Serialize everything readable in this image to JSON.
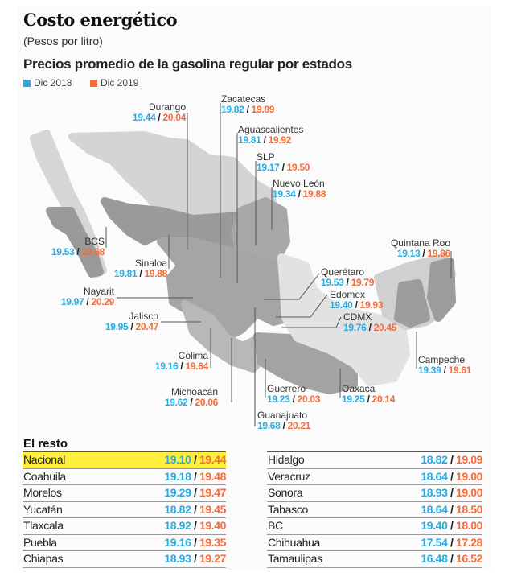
{
  "title": "Costo energético",
  "subtitle": "(Pesos por litro)",
  "heading": "Precios promedio de la gasolina regular por estados",
  "legend": [
    {
      "label": "Dic 2018",
      "color": "#29abe2"
    },
    {
      "label": "Dic 2019",
      "color": "#f26b3a"
    }
  ],
  "chart_data": {
    "type": "table",
    "title": "Precios promedio de la gasolina regular por estados",
    "series": [
      {
        "name": "Dic 2018"
      },
      {
        "name": "Dic 2019"
      }
    ],
    "map_states": [
      {
        "state": "Durango",
        "dic2018": "19.44",
        "dic2019": "20.04"
      },
      {
        "state": "Zacatecas",
        "dic2018": "19.82",
        "dic2019": "19.89"
      },
      {
        "state": "Aguascalientes",
        "dic2018": "19.81",
        "dic2019": "19.92"
      },
      {
        "state": "SLP",
        "dic2018": "19.17",
        "dic2019": "19.50"
      },
      {
        "state": "Nuevo León",
        "dic2018": "19.34",
        "dic2019": "19.88"
      },
      {
        "state": "BCS",
        "dic2018": "19.53",
        "dic2019": "20.68"
      },
      {
        "state": "Sinaloa",
        "dic2018": "19.81",
        "dic2019": "19.88"
      },
      {
        "state": "Nayarit",
        "dic2018": "19.97",
        "dic2019": "20.29"
      },
      {
        "state": "Jalisco",
        "dic2018": "19.95",
        "dic2019": "20.47"
      },
      {
        "state": "Colima",
        "dic2018": "19.16",
        "dic2019": "19.64"
      },
      {
        "state": "Michoacán",
        "dic2018": "19.62",
        "dic2019": "20.06"
      },
      {
        "state": "Guerrero",
        "dic2018": "19.23",
        "dic2019": "20.03"
      },
      {
        "state": "Guanajuato",
        "dic2018": "19.68",
        "dic2019": "20.21"
      },
      {
        "state": "Oaxaca",
        "dic2018": "19.25",
        "dic2019": "20.14"
      },
      {
        "state": "Querétaro",
        "dic2018": "19.53",
        "dic2019": "19.79"
      },
      {
        "state": "Edomex",
        "dic2018": "19.40",
        "dic2019": "19.93"
      },
      {
        "state": "CDMX",
        "dic2018": "19.76",
        "dic2019": "20.45"
      },
      {
        "state": "Quintana Roo",
        "dic2018": "19.13",
        "dic2019": "19.86"
      },
      {
        "state": "Campeche",
        "dic2018": "19.39",
        "dic2019": "19.61"
      }
    ],
    "rest_title": "El resto",
    "rest_left": [
      {
        "state": "Nacional",
        "dic2018": "19.10",
        "dic2019": "19.44",
        "highlight": true
      },
      {
        "state": "Coahuila",
        "dic2018": "19.18",
        "dic2019": "19.48"
      },
      {
        "state": "Morelos",
        "dic2018": "19.29",
        "dic2019": "19.47"
      },
      {
        "state": "Yucatán",
        "dic2018": "18.82",
        "dic2019": "19.45"
      },
      {
        "state": "Tlaxcala",
        "dic2018": "18.92",
        "dic2019": "19.40"
      },
      {
        "state": "Puebla",
        "dic2018": "19.16",
        "dic2019": "19.35"
      },
      {
        "state": "Chiapas",
        "dic2018": "18.93",
        "dic2019": "19.27"
      }
    ],
    "rest_right": [
      {
        "state": "Hidalgo",
        "dic2018": "18.82",
        "dic2019": "19.09"
      },
      {
        "state": "Veracruz",
        "dic2018": "18.64",
        "dic2019": "19.00"
      },
      {
        "state": "Sonora",
        "dic2018": "18.93",
        "dic2019": "19.00"
      },
      {
        "state": "Tabasco",
        "dic2018": "18.64",
        "dic2019": "18.50"
      },
      {
        "state": "BC",
        "dic2018": "19.40",
        "dic2019": "18.00"
      },
      {
        "state": "Chihuahua",
        "dic2018": "17.54",
        "dic2019": "17.28"
      },
      {
        "state": "Tamaulipas",
        "dic2018": "16.48",
        "dic2019": "16.52"
      }
    ]
  },
  "colors": {
    "dic2018": "#29abe2",
    "dic2019": "#f26b3a",
    "highlight": "#ffef3a"
  }
}
